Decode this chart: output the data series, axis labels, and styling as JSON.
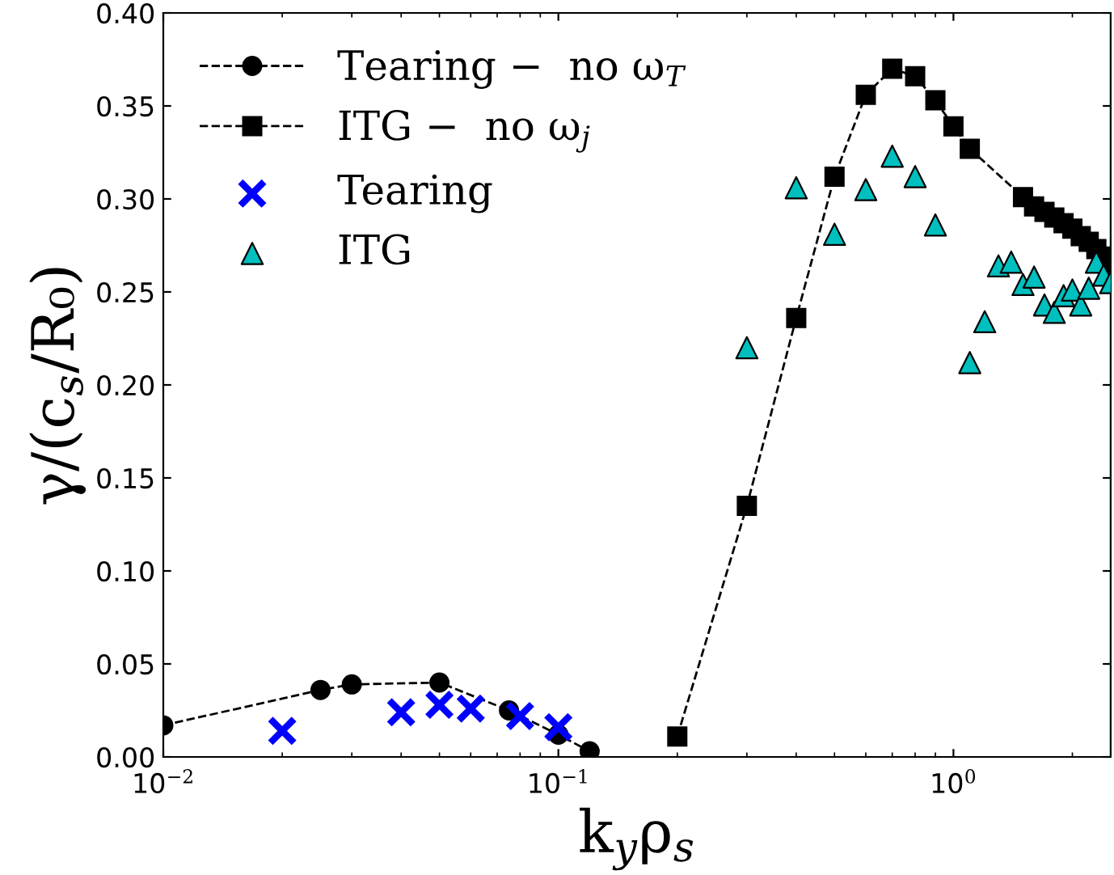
{
  "chart_data": {
    "type": "line",
    "xlabel": "k$_{y}$ρ$_{s}$",
    "ylabel": "γ/(c$_{s}$/R₀)",
    "log": "x",
    "xlim": [
      0.01,
      2.5
    ],
    "xticks": [
      {
        "value": 0.01,
        "label": "10$^{−2}$"
      },
      {
        "value": 0.1,
        "label": "10$^{−1}$"
      },
      {
        "value": 1,
        "label": "10$^{0}$"
      }
    ],
    "ylim": [
      0,
      0.4
    ],
    "yticks": [
      {
        "value": 0,
        "label": "0.00"
      },
      {
        "value": 0.05,
        "label": "0.05"
      },
      {
        "value": 0.1,
        "label": "0.10"
      },
      {
        "value": 0.15,
        "label": "0.15"
      },
      {
        "value": 0.2,
        "label": "0.20"
      },
      {
        "value": 0.25,
        "label": "0.25"
      },
      {
        "value": 0.3,
        "label": "0.30"
      },
      {
        "value": 0.35,
        "label": "0.35"
      },
      {
        "value": 0.4,
        "label": "0.40"
      }
    ],
    "grid": false,
    "legend": "top left",
    "series": [
      {
        "name": "Tearing −  no ω$_{T}$",
        "marker": "circle",
        "line_style": "dashed",
        "color": "#000000",
        "x": [
          0.01,
          0.025,
          0.03,
          0.05,
          0.075,
          0.1,
          0.12
        ],
        "values": [
          0.017,
          0.036,
          0.039,
          0.04,
          0.025,
          0.012,
          0.003
        ]
      },
      {
        "name": "ITG −  no ω$_{j}$",
        "marker": "square",
        "line_style": "dashed",
        "color": "#000000",
        "x": [
          0.2,
          0.3,
          0.4,
          0.5,
          0.6,
          0.7,
          0.8,
          0.9,
          1.0,
          1.1,
          1.5,
          1.6,
          1.7,
          1.8,
          1.9,
          2.0,
          2.1,
          2.2,
          2.3,
          2.4,
          2.5
        ],
        "values": [
          0.011,
          0.135,
          0.236,
          0.312,
          0.356,
          0.37,
          0.366,
          0.353,
          0.339,
          0.327,
          0.301,
          0.296,
          0.293,
          0.29,
          0.287,
          0.284,
          0.28,
          0.277,
          0.273,
          0.269,
          0.265
        ]
      },
      {
        "name": "Tearing",
        "type": "scatter",
        "marker": "cross",
        "color": "#0000ff",
        "x": [
          0.02,
          0.04,
          0.05,
          0.06,
          0.08,
          0.1
        ],
        "values": [
          0.014,
          0.024,
          0.028,
          0.026,
          0.022,
          0.016
        ]
      },
      {
        "name": "ITG",
        "type": "scatter",
        "marker": "triangle",
        "color": "#00bfbf",
        "x": [
          0.3,
          0.4,
          0.5,
          0.6,
          0.7,
          0.8,
          0.9,
          1.1,
          1.2,
          1.3,
          1.4,
          1.5,
          1.6,
          1.7,
          1.8,
          1.9,
          2.0,
          2.1,
          2.2,
          2.3,
          2.4,
          2.5
        ],
        "values": [
          0.22,
          0.306,
          0.281,
          0.305,
          0.323,
          0.312,
          0.286,
          0.212,
          0.234,
          0.264,
          0.266,
          0.254,
          0.258,
          0.243,
          0.239,
          0.248,
          0.251,
          0.243,
          0.252,
          0.266,
          0.259,
          0.255
        ]
      }
    ]
  }
}
